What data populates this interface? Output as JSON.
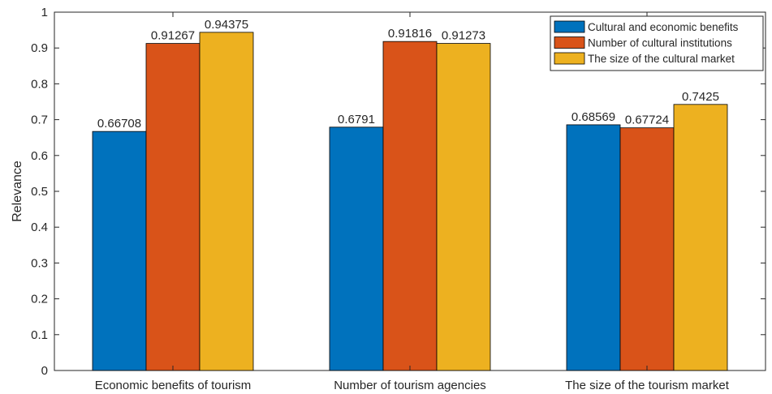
{
  "chart_data": {
    "type": "bar",
    "categories": [
      "Economic benefits of tourism",
      "Number of tourism agencies",
      "The size of the tourism market"
    ],
    "series": [
      {
        "name": "Cultural and economic benefits",
        "values": [
          0.66708,
          0.6791,
          0.68569
        ],
        "labels": [
          "0.66708",
          "0.6791",
          "0.68569"
        ]
      },
      {
        "name": "Number of cultural institutions",
        "values": [
          0.91267,
          0.91816,
          0.67724
        ],
        "labels": [
          "0.91267",
          "0.91816",
          "0.67724"
        ]
      },
      {
        "name": "The size of the cultural market",
        "values": [
          0.94375,
          0.91273,
          0.7425
        ],
        "labels": [
          "0.94375",
          "0.91273",
          "0.7425"
        ]
      }
    ],
    "colors": [
      "#0072BD",
      "#D95319",
      "#EDB120"
    ],
    "title": "",
    "xlabel": "",
    "ylabel": "Relevance",
    "ylim": [
      0,
      1
    ],
    "yticks": [
      "0",
      "0.1",
      "0.2",
      "0.3",
      "0.4",
      "0.5",
      "0.6",
      "0.7",
      "0.8",
      "0.9",
      "1"
    ],
    "grid": false,
    "legend_position": "top-right"
  }
}
